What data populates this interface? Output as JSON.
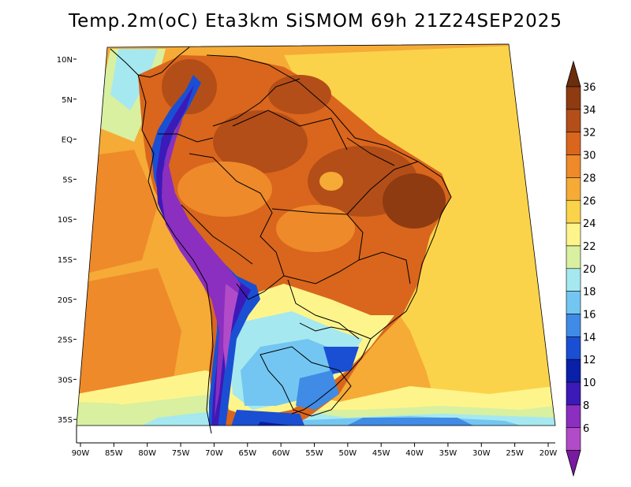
{
  "title": "Temp.2m(oC) Eta3km SiSMOM 69h 21Z24SEP2025",
  "lat_labels": [
    "10N",
    "5N",
    "EQ",
    "5S",
    "10S",
    "15S",
    "20S",
    "25S",
    "30S",
    "35S"
  ],
  "lon_labels": [
    "90W",
    "85W",
    "80W",
    "75W",
    "70W",
    "65W",
    "60W",
    "55W",
    "50W",
    "45W",
    "40W",
    "35W",
    "30W",
    "25W",
    "20W"
  ],
  "colorbar": {
    "labels": [
      "36",
      "34",
      "32",
      "30",
      "28",
      "26",
      "24",
      "22",
      "20",
      "18",
      "16",
      "14",
      "12",
      "10",
      "8",
      "6"
    ],
    "colors": [
      "#6b2d0c",
      "#8e3b12",
      "#b44e18",
      "#d9661c",
      "#ee8a2a",
      "#f5ab35",
      "#fbd34a",
      "#fdf58c",
      "#d8f0a0",
      "#a5e8f0",
      "#73c6f2",
      "#3f8be6",
      "#1a4fd4",
      "#0a20a8",
      "#3c1ab8",
      "#8a2fbf",
      "#b24bc8",
      "#7a1aa0"
    ]
  }
}
